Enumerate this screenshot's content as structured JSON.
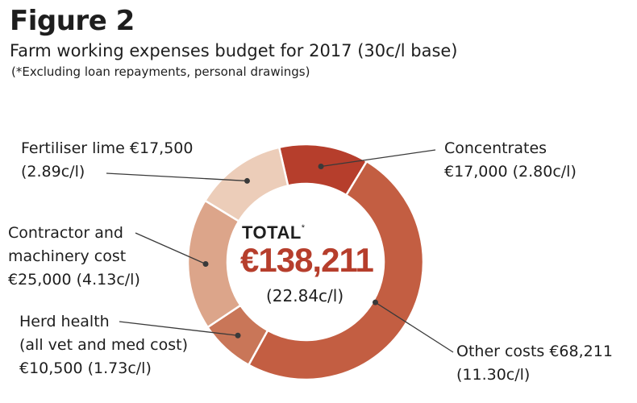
{
  "figure": {
    "label": "Figure 2",
    "subtitle": "Farm working expenses budget for 2017 (30c/l base)",
    "note": "(*Excluding loan repayments, personal drawings)"
  },
  "total": {
    "word": "TOTAL",
    "asterisk": "*",
    "value": "€138,211",
    "rate": "(22.84c/l)"
  },
  "chart_data": {
    "type": "pie",
    "title": "Farm working expenses budget for 2017 (30c/l base)",
    "style": "donut",
    "unit": "€",
    "categories": [
      "Concentrates",
      "Other costs",
      "Herd health",
      "Contractor and machinery cost",
      "Fertiliser lime"
    ],
    "values": [
      17000,
      68211,
      10500,
      25000,
      17500
    ],
    "colors": [
      "#b63e2c",
      "#c35e42",
      "#c97658",
      "#dca58a",
      "#eccdb9"
    ],
    "labels": [
      {
        "name": "Concentrates",
        "lines": [
          "Concentrates",
          "€17,000 (2.80c/l)"
        ]
      },
      {
        "name": "Other costs",
        "lines": [
          "Other costs €68,211",
          "(11.30c/l)"
        ]
      },
      {
        "name": "Herd health",
        "lines": [
          "Herd health",
          "(all vet and med cost)",
          "€10,500 (1.73c/l)"
        ]
      },
      {
        "name": "Contractor and machinery cost",
        "lines": [
          "Contractor and",
          "machinery cost",
          "€25,000 (4.13c/l)"
        ]
      },
      {
        "name": "Fertiliser lime",
        "lines": [
          "Fertiliser lime €17,500",
          "(2.89c/l)"
        ]
      }
    ]
  }
}
